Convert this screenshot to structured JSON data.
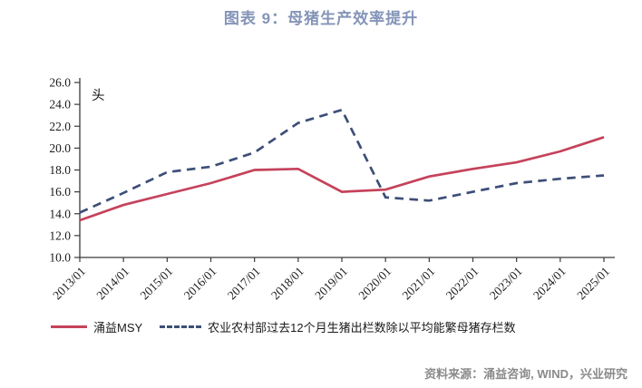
{
  "title": "图表 9：母猪生产效率提升",
  "unit_label": "头",
  "source": "资料来源：涌益咨询, WIND，兴业研究",
  "colors": {
    "title": "#8494B8",
    "series_solid": "#C5425A",
    "series_dashed": "#3D4F78",
    "axis": "#3a3a3a",
    "tick_label": "#1a1a1a",
    "source_text": "#8a8a8a"
  },
  "legend": {
    "items": [
      {
        "label": "涌益MSY",
        "style": "solid"
      },
      {
        "label": "农业农村部过去12个月生猪出栏数除以平均能繁母猪存栏数",
        "style": "dashed"
      }
    ]
  },
  "chart_data": {
    "type": "line",
    "title": "图表 9：母猪生产效率提升",
    "xlabel": "",
    "ylabel": "头",
    "ylim": [
      10.0,
      26.0
    ],
    "ytick_step": 2.0,
    "ytick_decimals": 1,
    "grid": false,
    "legend_position": "bottom",
    "categories": [
      "2013/01",
      "2014/01",
      "2015/01",
      "2016/01",
      "2017/01",
      "2018/01",
      "2019/01",
      "2020/01",
      "2021/01",
      "2022/01",
      "2023/01",
      "2024/01",
      "2025/01"
    ],
    "series": [
      {
        "name": "涌益MSY",
        "style": "solid",
        "color": "#C5425A",
        "values": [
          13.4,
          14.8,
          15.8,
          16.8,
          18.0,
          18.1,
          16.0,
          16.2,
          17.4,
          18.1,
          18.7,
          19.7,
          21.0
        ]
      },
      {
        "name": "农业农村部过去12个月生猪出栏数除以平均能繁母猪存栏数",
        "style": "dashed",
        "color": "#3D4F78",
        "values": [
          14.1,
          15.9,
          17.8,
          18.3,
          19.6,
          22.3,
          23.5,
          15.5,
          15.2,
          16.0,
          16.8,
          17.2,
          17.5
        ]
      }
    ]
  }
}
